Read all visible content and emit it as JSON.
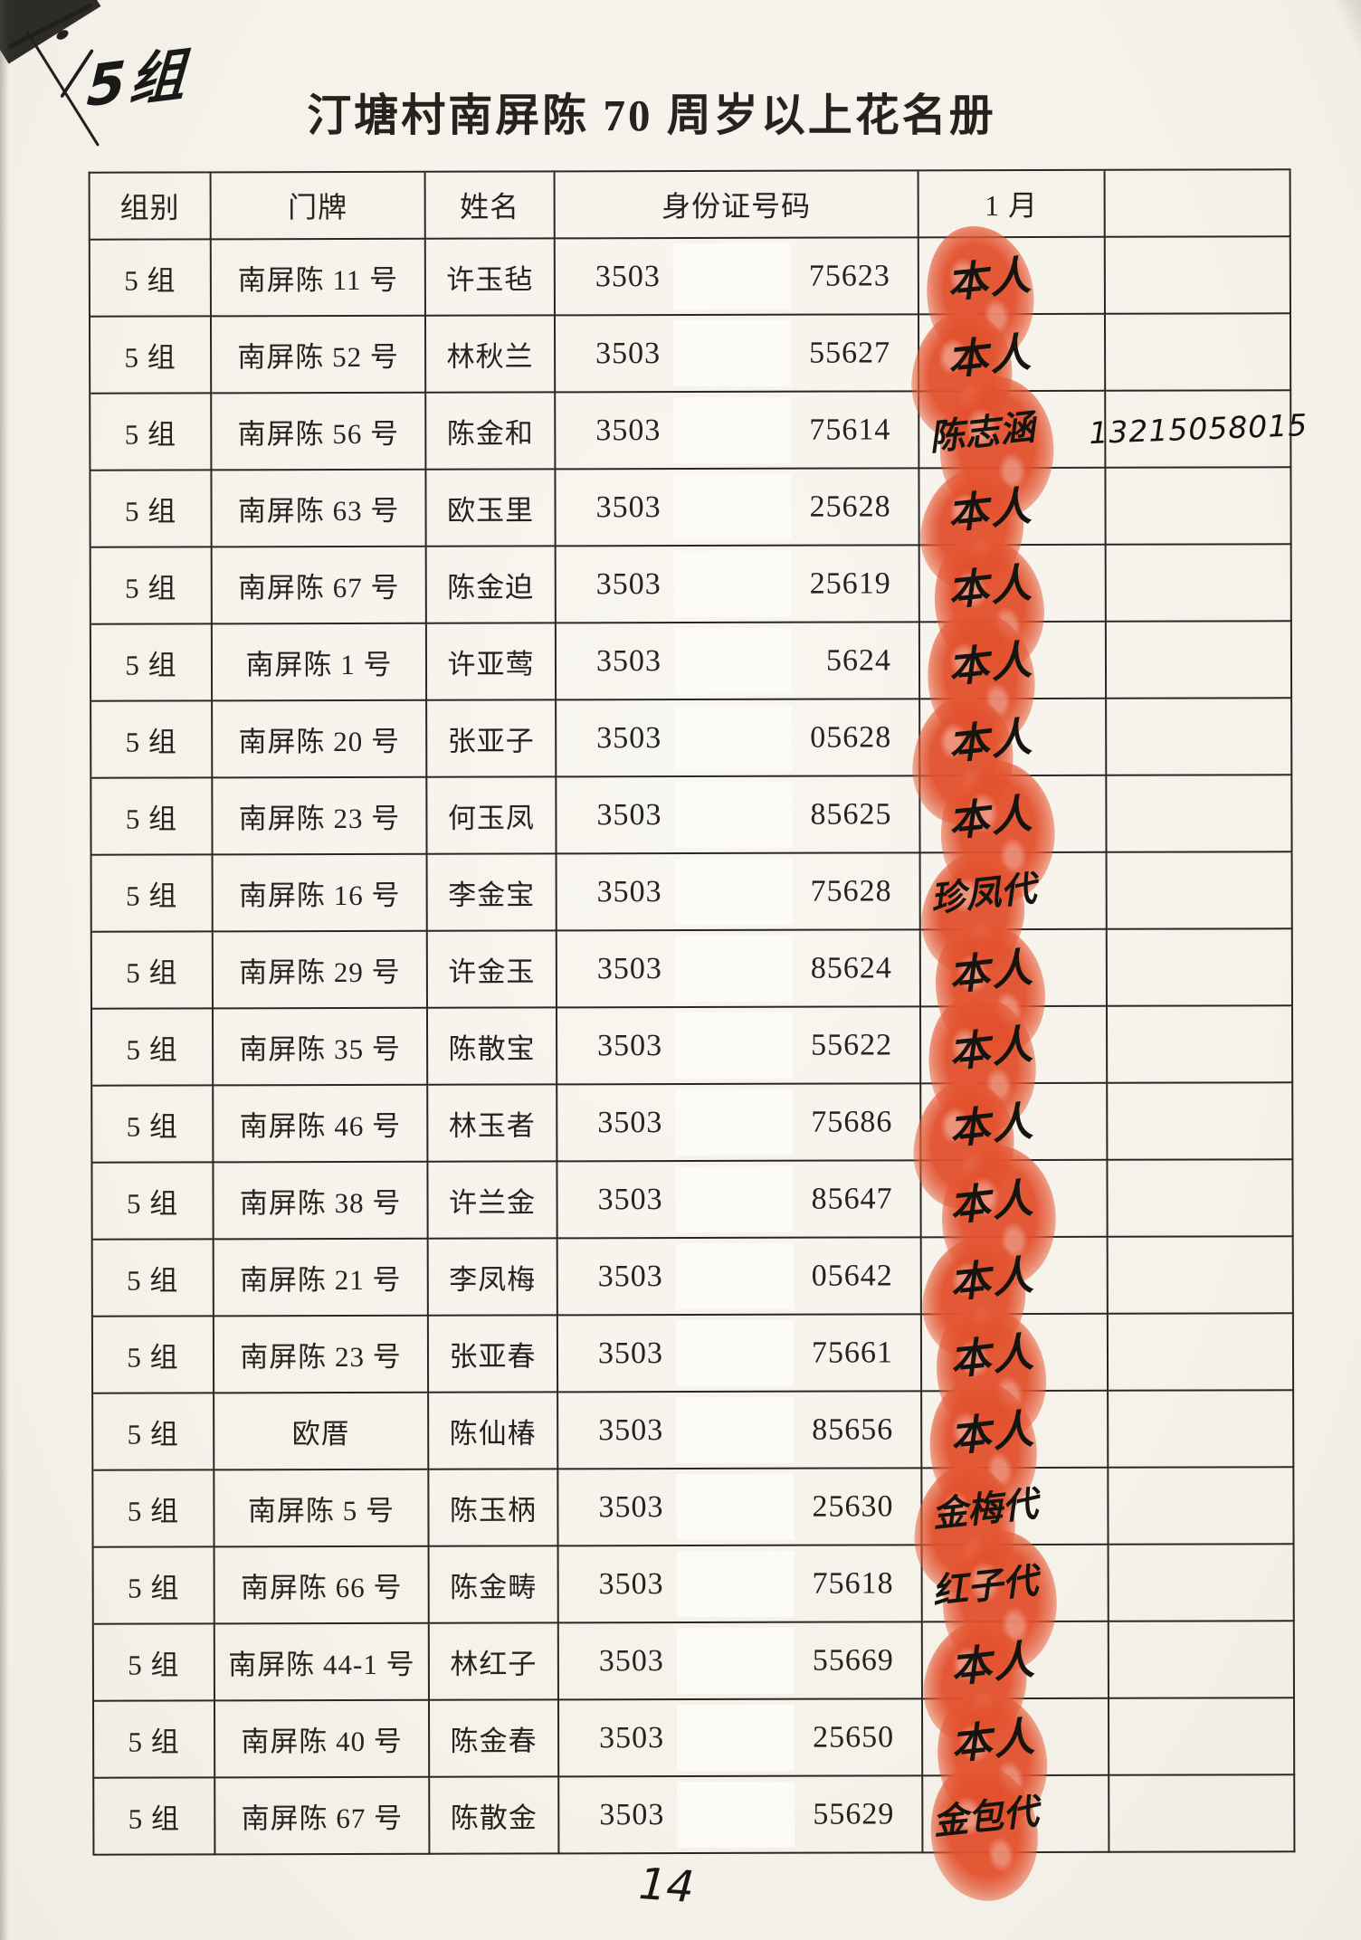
{
  "page": {
    "title": "汀塘村南屏陈 70 周岁以上花名册",
    "corner_annotation": "5组",
    "page_number": "14"
  },
  "colors": {
    "fingerprint_red": "#e2512e",
    "ink": "#26221e",
    "paper": "#f6f3ed"
  },
  "table": {
    "headers": [
      "组别",
      "门牌",
      "姓名",
      "身份证号码",
      "1 月",
      ""
    ],
    "rows": [
      {
        "group": "5 组",
        "door": "南屏陈 11 号",
        "name": "许玉毡",
        "id_prefix": "3503",
        "id_suffix": "75623",
        "signature": "本人",
        "note": ""
      },
      {
        "group": "5 组",
        "door": "南屏陈 52 号",
        "name": "林秋兰",
        "id_prefix": "3503",
        "id_suffix": "55627",
        "signature": "本人",
        "note": ""
      },
      {
        "group": "5 组",
        "door": "南屏陈 56 号",
        "name": "陈金和",
        "id_prefix": "3503",
        "id_suffix": "75614",
        "signature": "陈志涵",
        "note": "13215058015"
      },
      {
        "group": "5 组",
        "door": "南屏陈 63 号",
        "name": "欧玉里",
        "id_prefix": "3503",
        "id_suffix": "25628",
        "signature": "本人",
        "note": ""
      },
      {
        "group": "5 组",
        "door": "南屏陈 67 号",
        "name": "陈金迫",
        "id_prefix": "3503",
        "id_suffix": "25619",
        "signature": "本人",
        "note": ""
      },
      {
        "group": "5 组",
        "door": "南屏陈 1 号",
        "name": "许亚莺",
        "id_prefix": "3503",
        "id_suffix": "5624",
        "signature": "本人",
        "note": ""
      },
      {
        "group": "5 组",
        "door": "南屏陈 20 号",
        "name": "张亚子",
        "id_prefix": "3503",
        "id_suffix": "05628",
        "signature": "本人",
        "note": ""
      },
      {
        "group": "5 组",
        "door": "南屏陈 23 号",
        "name": "何玉凤",
        "id_prefix": "3503",
        "id_suffix": "85625",
        "signature": "本人",
        "note": ""
      },
      {
        "group": "5 组",
        "door": "南屏陈 16 号",
        "name": "李金宝",
        "id_prefix": "3503",
        "id_suffix": "75628",
        "signature": "珍凤代",
        "note": ""
      },
      {
        "group": "5 组",
        "door": "南屏陈 29 号",
        "name": "许金玉",
        "id_prefix": "3503",
        "id_suffix": "85624",
        "signature": "本人",
        "note": ""
      },
      {
        "group": "5 组",
        "door": "南屏陈 35 号",
        "name": "陈散宝",
        "id_prefix": "3503",
        "id_suffix": "55622",
        "signature": "本人",
        "note": ""
      },
      {
        "group": "5 组",
        "door": "南屏陈 46 号",
        "name": "林玉者",
        "id_prefix": "3503",
        "id_suffix": "75686",
        "signature": "本人",
        "note": ""
      },
      {
        "group": "5 组",
        "door": "南屏陈 38 号",
        "name": "许兰金",
        "id_prefix": "3503",
        "id_suffix": "85647",
        "signature": "本人",
        "note": ""
      },
      {
        "group": "5 组",
        "door": "南屏陈 21 号",
        "name": "李凤梅",
        "id_prefix": "3503",
        "id_suffix": "05642",
        "signature": "本人",
        "note": ""
      },
      {
        "group": "5 组",
        "door": "南屏陈 23 号",
        "name": "张亚春",
        "id_prefix": "3503",
        "id_suffix": "75661",
        "signature": "本人",
        "note": ""
      },
      {
        "group": "5 组",
        "door": "欧厝",
        "name": "陈仙椿",
        "id_prefix": "3503",
        "id_suffix": "85656",
        "signature": "本人",
        "note": ""
      },
      {
        "group": "5 组",
        "door": "南屏陈 5 号",
        "name": "陈玉柄",
        "id_prefix": "3503",
        "id_suffix": "25630",
        "signature": "金梅代",
        "note": ""
      },
      {
        "group": "5 组",
        "door": "南屏陈 66 号",
        "name": "陈金畴",
        "id_prefix": "3503",
        "id_suffix": "75618",
        "signature": "红子代",
        "note": ""
      },
      {
        "group": "5 组",
        "door": "南屏陈 44-1 号",
        "name": "林红子",
        "id_prefix": "3503",
        "id_suffix": "55669",
        "signature": "本人",
        "note": ""
      },
      {
        "group": "5 组",
        "door": "南屏陈 40 号",
        "name": "陈金春",
        "id_prefix": "3503",
        "id_suffix": "25650",
        "signature": "本人",
        "note": ""
      },
      {
        "group": "5 组",
        "door": "南屏陈 67 号",
        "name": "陈散金",
        "id_prefix": "3503",
        "id_suffix": "55629",
        "signature": "金包代",
        "note": ""
      }
    ]
  }
}
